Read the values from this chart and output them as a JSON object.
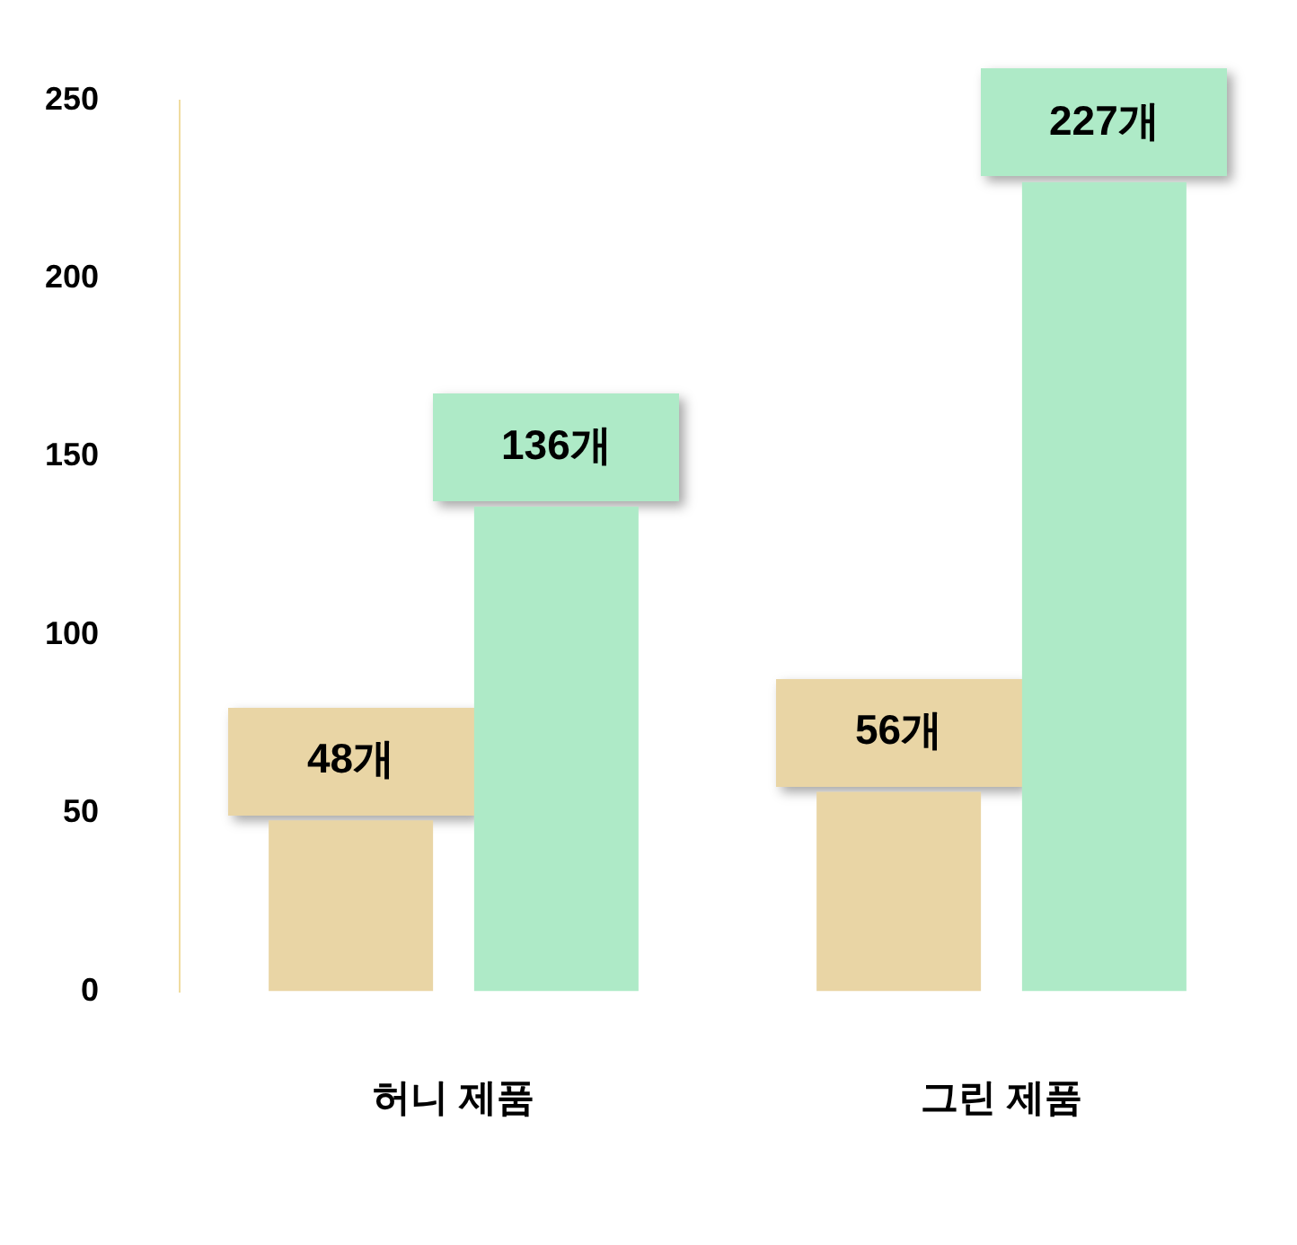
{
  "chart_data": {
    "type": "bar",
    "categories": [
      "허니 제품",
      "그린 제품"
    ],
    "series": [
      {
        "color": "#e9d5a5",
        "values": [
          48,
          56
        ],
        "value_labels": [
          "48개",
          "56개"
        ]
      },
      {
        "color": "#aeeac7",
        "values": [
          136,
          227
        ],
        "value_labels": [
          "136개",
          "227개"
        ]
      }
    ],
    "ylim": [
      0,
      250
    ],
    "yticks": [
      0,
      50,
      100,
      150,
      200,
      250
    ],
    "grid": false,
    "legend": false
  }
}
